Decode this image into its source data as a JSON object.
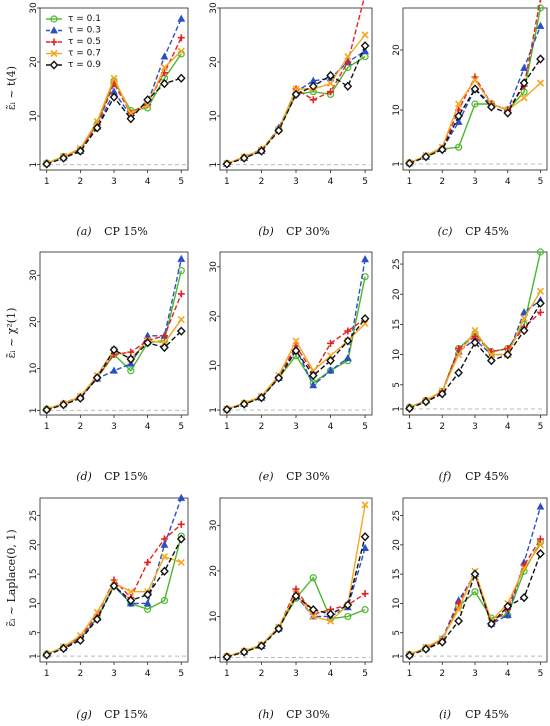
{
  "series_styles": [
    {
      "name": "τ = 0.1",
      "color": "#4cb82c",
      "marker": "circle",
      "dash": "solid"
    },
    {
      "name": "τ = 0.3",
      "color": "#2b4fc7",
      "marker": "triangle",
      "dash": "dashed"
    },
    {
      "name": "τ = 0.5",
      "color": "#e52222",
      "marker": "plus",
      "dash": "dashed"
    },
    {
      "name": "τ = 0.7",
      "color": "#f5a623",
      "marker": "x",
      "dash": "solid"
    },
    {
      "name": "τ = 0.9",
      "color": "#111111",
      "marker": "diamond",
      "dash": "dashed"
    }
  ],
  "row_labels": [
    "ε̃ᵢ ~ t(4)",
    "ε̃ᵢ ~ χ²(1)",
    "ε̃ᵢ ~ Laplace(0, 1)"
  ],
  "chart_data": [
    {
      "type": "line",
      "caption_letter": "(a)",
      "caption_text": "CP 15%",
      "x": [
        1,
        1.5,
        2,
        2.5,
        3,
        3.5,
        4,
        4.5,
        5
      ],
      "ylim": [
        0,
        30
      ],
      "yticks": [
        1,
        10,
        20,
        30
      ],
      "xticks": [
        1,
        2,
        3,
        4,
        5
      ],
      "reference_line": 1,
      "series": [
        {
          "name": "τ = 0.1",
          "values": [
            1.3,
            2.5,
            3.8,
            8.5,
            16.5,
            11,
            11.5,
            17,
            21.5
          ]
        },
        {
          "name": "τ = 0.3",
          "values": [
            1.2,
            2.3,
            3.5,
            8,
            14.5,
            10,
            12.5,
            21,
            28
          ]
        },
        {
          "name": "τ = 0.5",
          "values": [
            1.2,
            2.4,
            3.7,
            8.3,
            16,
            10.5,
            12.5,
            18,
            24.5
          ]
        },
        {
          "name": "τ = 0.7",
          "values": [
            1.2,
            2.5,
            4,
            9,
            17,
            10.5,
            12,
            19,
            22
          ]
        },
        {
          "name": "τ = 0.9",
          "values": [
            1.1,
            2.2,
            3.5,
            7.8,
            13.5,
            9.5,
            13,
            16,
            17
          ]
        }
      ]
    },
    {
      "type": "line",
      "caption_letter": "(b)",
      "caption_text": "CP 30%",
      "x": [
        1,
        1.5,
        2,
        2.5,
        3,
        3.5,
        4,
        4.5,
        5
      ],
      "ylim": [
        0,
        30
      ],
      "yticks": [
        1,
        10,
        20,
        30
      ],
      "xticks": [
        1,
        2,
        3,
        4,
        5
      ],
      "reference_line": 1,
      "series": [
        {
          "name": "τ = 0.1",
          "values": [
            1.2,
            2.3,
            3.6,
            7.5,
            14,
            14.5,
            14,
            19,
            21
          ]
        },
        {
          "name": "τ = 0.3",
          "values": [
            1.1,
            2.2,
            3.5,
            7.8,
            14.5,
            16.5,
            17,
            20,
            22
          ]
        },
        {
          "name": "τ = 0.5",
          "values": [
            1.2,
            2.4,
            3.8,
            7.5,
            15,
            13,
            14.5,
            20,
            32.5
          ]
        },
        {
          "name": "τ = 0.7",
          "values": [
            1.2,
            2.4,
            3.7,
            7.5,
            15,
            15,
            16,
            21,
            25
          ]
        },
        {
          "name": "τ = 0.9",
          "values": [
            1.1,
            2.2,
            3.5,
            7.3,
            14,
            15.5,
            17.5,
            15.5,
            23
          ]
        }
      ]
    },
    {
      "type": "line",
      "caption_letter": "(c)",
      "caption_text": "CP 45%",
      "x": [
        1,
        1.5,
        2,
        2.5,
        3,
        3.5,
        4,
        4.5,
        5
      ],
      "ylim": [
        0,
        27
      ],
      "yticks": [
        1,
        10,
        20
      ],
      "xticks": [
        1,
        2,
        3,
        4,
        5
      ],
      "reference_line": 1,
      "series": [
        {
          "name": "τ = 0.1",
          "values": [
            1.2,
            2.3,
            3.5,
            3.8,
            11,
            11,
            10,
            13,
            27
          ]
        },
        {
          "name": "τ = 0.3",
          "values": [
            1.1,
            2.2,
            3.5,
            8,
            13.5,
            11,
            10,
            17,
            24
          ]
        },
        {
          "name": "τ = 0.5",
          "values": [
            1.2,
            2.3,
            3.6,
            10,
            15.5,
            11,
            10,
            14,
            28.5
          ]
        },
        {
          "name": "τ = 0.7",
          "values": [
            1.2,
            2.4,
            3.8,
            11,
            15,
            11,
            10,
            12,
            14.5
          ]
        },
        {
          "name": "τ = 0.9",
          "values": [
            1.1,
            2.2,
            3.4,
            9,
            13.5,
            10.5,
            9.5,
            14.5,
            18.5
          ]
        }
      ]
    },
    {
      "type": "line",
      "caption_letter": "(d)",
      "caption_text": "CP 15%",
      "x": [
        1,
        1.5,
        2,
        2.5,
        3,
        3.5,
        4,
        4.5,
        5
      ],
      "ylim": [
        0,
        35
      ],
      "yticks": [
        1,
        10,
        20,
        30
      ],
      "xticks": [
        1,
        2,
        3,
        4,
        5
      ],
      "reference_line": 1,
      "series": [
        {
          "name": "τ = 0.1",
          "values": [
            1.3,
            2.4,
            3.8,
            8,
            13,
            9.5,
            15.5,
            16,
            31
          ]
        },
        {
          "name": "τ = 0.3",
          "values": [
            1.2,
            2.3,
            3.8,
            7.8,
            9.5,
            11,
            17,
            17,
            33.5
          ]
        },
        {
          "name": "τ = 0.5",
          "values": [
            1.2,
            2.5,
            4,
            8,
            13,
            13.5,
            16,
            17,
            26
          ]
        },
        {
          "name": "τ = 0.7",
          "values": [
            1.2,
            2.4,
            4,
            8.5,
            14,
            12,
            16,
            15.5,
            20.5
          ]
        },
        {
          "name": "τ = 0.9",
          "values": [
            1.1,
            2.2,
            3.6,
            8,
            14,
            12,
            15.5,
            14.5,
            18
          ]
        }
      ]
    },
    {
      "type": "line",
      "caption_letter": "(e)",
      "caption_text": "CP 30%",
      "x": [
        1,
        1.5,
        2,
        2.5,
        3,
        3.5,
        4,
        4.5,
        5
      ],
      "ylim": [
        0,
        33
      ],
      "yticks": [
        1,
        10,
        20,
        30
      ],
      "xticks": [
        1,
        2,
        3,
        4,
        5
      ],
      "reference_line": 1,
      "series": [
        {
          "name": "τ = 0.1",
          "values": [
            1.2,
            2.3,
            3.6,
            7.5,
            12,
            6.5,
            9,
            11,
            28
          ]
        },
        {
          "name": "τ = 0.3",
          "values": [
            1.1,
            2.2,
            3.5,
            7.5,
            13.5,
            6,
            9,
            11.5,
            31.5
          ]
        },
        {
          "name": "τ = 0.5",
          "values": [
            1.2,
            2.4,
            3.7,
            7.7,
            14,
            8.5,
            14.5,
            17,
            19.5
          ]
        },
        {
          "name": "τ = 0.7",
          "values": [
            1.2,
            2.4,
            3.8,
            8,
            15,
            9,
            12,
            15,
            18.5
          ]
        },
        {
          "name": "τ = 0.9",
          "values": [
            1.1,
            2.2,
            3.5,
            7.5,
            13,
            8,
            11,
            15,
            19.5
          ]
        }
      ]
    },
    {
      "type": "line",
      "caption_letter": "(f)",
      "caption_text": "CP 45%",
      "x": [
        1,
        1.5,
        2,
        2.5,
        3,
        3.5,
        4,
        4.5,
        5
      ],
      "ylim": [
        0,
        27
      ],
      "yticks": [
        1,
        5,
        10,
        15,
        20,
        25
      ],
      "xticks": [
        1,
        2,
        3,
        4,
        5
      ],
      "reference_line": 1,
      "series": [
        {
          "name": "τ = 0.1",
          "values": [
            1.3,
            2.4,
            3.9,
            11,
            13.5,
            10.5,
            11,
            15,
            27
          ]
        },
        {
          "name": "τ = 0.3",
          "values": [
            1.2,
            2.3,
            3.8,
            10.5,
            12.5,
            10,
            10,
            17,
            19
          ]
        },
        {
          "name": "τ = 0.5",
          "values": [
            1.2,
            2.4,
            3.9,
            11,
            13,
            10.5,
            11,
            14.5,
            17
          ]
        },
        {
          "name": "τ = 0.7",
          "values": [
            1.2,
            2.4,
            4,
            10,
            14,
            10,
            10,
            16,
            20.5
          ]
        },
        {
          "name": "τ = 0.9",
          "values": [
            1.1,
            2.2,
            3.5,
            7,
            12,
            9,
            10,
            14,
            18.5
          ]
        }
      ]
    },
    {
      "type": "line",
      "caption_letter": "(g)",
      "caption_text": "CP 15%",
      "x": [
        1,
        1.5,
        2,
        2.5,
        3,
        3.5,
        4,
        4.5,
        5
      ],
      "ylim": [
        0,
        28
      ],
      "yticks": [
        1,
        5,
        10,
        15,
        20,
        25
      ],
      "xticks": [
        1,
        2,
        3,
        4,
        5
      ],
      "reference_line": 1,
      "series": [
        {
          "name": "τ = 0.1",
          "values": [
            1.4,
            2.5,
            4,
            7.5,
            13,
            10,
            9,
            10.5,
            21.5
          ]
        },
        {
          "name": "τ = 0.3",
          "values": [
            1.3,
            2.4,
            4,
            7.5,
            13,
            10,
            10,
            20,
            28
          ]
        },
        {
          "name": "τ = 0.5",
          "values": [
            1.3,
            2.5,
            4.2,
            8,
            14,
            11,
            17,
            21,
            23.5
          ]
        },
        {
          "name": "τ = 0.7",
          "values": [
            1.3,
            2.6,
            4.5,
            8.5,
            13.5,
            12,
            12,
            18,
            17
          ]
        },
        {
          "name": "τ = 0.9",
          "values": [
            1.2,
            2.3,
            3.7,
            7.3,
            13,
            10.5,
            11.5,
            15.5,
            21
          ]
        }
      ]
    },
    {
      "type": "line",
      "caption_letter": "(h)",
      "caption_text": "CP 30%",
      "x": [
        1,
        1.5,
        2,
        2.5,
        3,
        3.5,
        4,
        4.5,
        5
      ],
      "ylim": [
        0,
        36
      ],
      "yticks": [
        1,
        10,
        20,
        30
      ],
      "xticks": [
        1,
        2,
        3,
        4,
        5
      ],
      "reference_line": 1,
      "series": [
        {
          "name": "τ = 0.1",
          "values": [
            1.2,
            2.3,
            3.6,
            7.5,
            14,
            18.5,
            9.5,
            10,
            11.5
          ]
        },
        {
          "name": "τ = 0.3",
          "values": [
            1.1,
            2.2,
            3.5,
            7.3,
            14.5,
            10,
            10,
            12,
            25
          ]
        },
        {
          "name": "τ = 0.5",
          "values": [
            1.2,
            2.4,
            3.7,
            7.5,
            16,
            10.5,
            11.5,
            12.5,
            15
          ]
        },
        {
          "name": "τ = 0.7",
          "values": [
            1.2,
            2.4,
            3.8,
            7.7,
            15,
            10,
            9,
            12.5,
            34.5
          ]
        },
        {
          "name": "τ = 0.9",
          "values": [
            1.1,
            2.2,
            3.5,
            7.3,
            14.5,
            11.5,
            10.5,
            12.5,
            27.5
          ]
        }
      ]
    },
    {
      "type": "line",
      "caption_letter": "(i)",
      "caption_text": "CP 45%",
      "x": [
        1,
        1.5,
        2,
        2.5,
        3,
        3.5,
        4,
        4.5,
        5
      ],
      "ylim": [
        0,
        28
      ],
      "yticks": [
        1,
        5,
        10,
        15,
        20,
        25
      ],
      "xticks": [
        1,
        2,
        3,
        4,
        5
      ],
      "reference_line": 1,
      "series": [
        {
          "name": "τ = 0.1",
          "values": [
            1.3,
            2.4,
            3.8,
            9.5,
            12,
            7.5,
            8,
            15.5,
            20.5
          ]
        },
        {
          "name": "τ = 0.3",
          "values": [
            1.2,
            2.3,
            3.9,
            10.5,
            15,
            6.5,
            8,
            17,
            26.5
          ]
        },
        {
          "name": "τ = 0.5",
          "values": [
            1.2,
            2.4,
            3.7,
            10,
            15,
            6.5,
            9,
            16.5,
            21
          ]
        },
        {
          "name": "τ = 0.7",
          "values": [
            1.2,
            2.5,
            4,
            9,
            15.5,
            7,
            10,
            16,
            20
          ]
        },
        {
          "name": "τ = 0.9",
          "values": [
            1.1,
            2.2,
            3.4,
            7,
            15,
            6.5,
            9.5,
            11,
            18.5
          ]
        }
      ]
    }
  ]
}
